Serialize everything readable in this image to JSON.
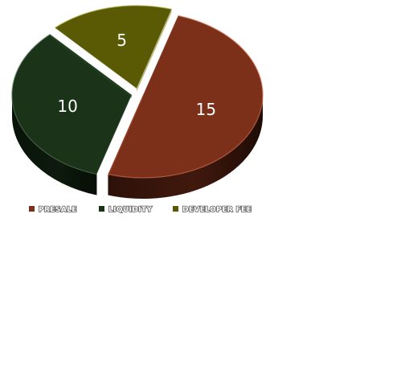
{
  "chart_data": {
    "type": "pie",
    "style": "3d-exploded-tilted",
    "title": "",
    "categories": [
      "PRESALE",
      "LIQUIDITY",
      "DEVELOPER FEE"
    ],
    "values": [
      15,
      10,
      5
    ],
    "colors": [
      "#7c3019",
      "#1a3319",
      "#5a5a05"
    ],
    "data_labels": [
      "15",
      "10",
      "5"
    ],
    "legend": {
      "position": "bottom",
      "entries": [
        "PRESALE",
        "LIQUIDITY",
        "DEVELOPER FEE"
      ]
    }
  }
}
